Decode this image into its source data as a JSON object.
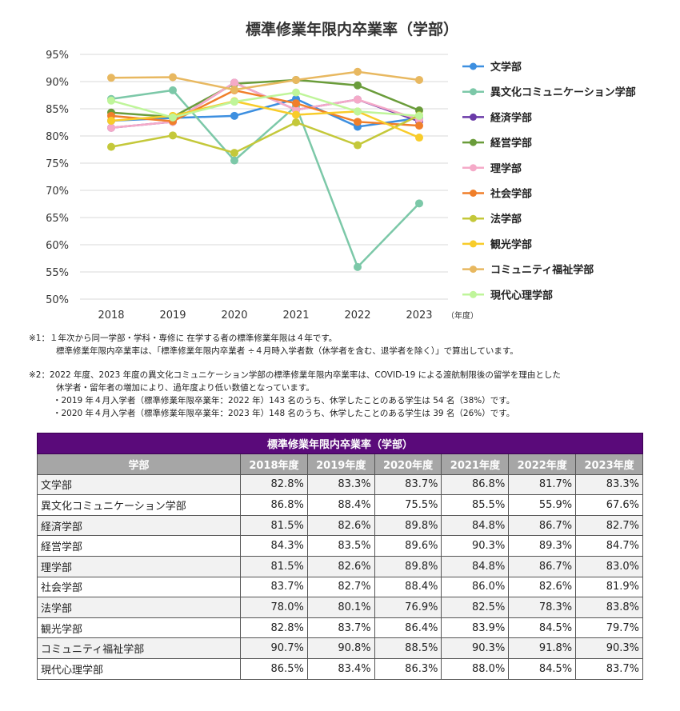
{
  "chart_data": {
    "type": "line",
    "title": "標準修業年限内卒業率（学部）",
    "x": [
      "2018",
      "2019",
      "2020",
      "2021",
      "2022",
      "2023"
    ],
    "x_unit": "（年度）",
    "ylim": [
      50,
      95
    ],
    "yticks": [
      "50%",
      "55%",
      "60%",
      "65%",
      "70%",
      "75%",
      "80%",
      "85%",
      "90%",
      "95%"
    ],
    "grid": true,
    "legend_position": "right",
    "series": [
      {
        "name": "文学部",
        "color": "#3d8fe0",
        "values": [
          82.8,
          83.3,
          83.7,
          86.8,
          81.7,
          83.3
        ]
      },
      {
        "name": "異文化コミュニケーション学部",
        "color": "#7cc8a8",
        "values": [
          86.8,
          88.4,
          75.5,
          85.5,
          55.9,
          67.6
        ]
      },
      {
        "name": "経済学部",
        "color": "#6a3aa8",
        "values": [
          81.5,
          82.6,
          89.8,
          84.8,
          86.7,
          82.7
        ]
      },
      {
        "name": "経営学部",
        "color": "#6a9c3a",
        "values": [
          84.3,
          83.5,
          89.6,
          90.3,
          89.3,
          84.7
        ]
      },
      {
        "name": "理学部",
        "color": "#f5aac8",
        "values": [
          81.5,
          82.6,
          89.8,
          84.8,
          86.7,
          83.0
        ]
      },
      {
        "name": "社会学部",
        "color": "#f07f2a",
        "values": [
          83.7,
          82.7,
          88.4,
          86.0,
          82.6,
          81.9
        ]
      },
      {
        "name": "法学部",
        "color": "#c4c83a",
        "values": [
          78.0,
          80.1,
          76.9,
          82.5,
          78.3,
          83.8
        ]
      },
      {
        "name": "観光学部",
        "color": "#f8cc2a",
        "values": [
          82.8,
          83.7,
          86.4,
          83.9,
          84.5,
          79.7
        ]
      },
      {
        "name": "コミュニティ福祉学部",
        "color": "#e8b860",
        "values": [
          90.7,
          90.8,
          88.5,
          90.3,
          91.8,
          90.3
        ]
      },
      {
        "name": "現代心理学部",
        "color": "#bff59a",
        "values": [
          86.5,
          83.4,
          86.3,
          88.0,
          84.5,
          83.7
        ]
      }
    ]
  },
  "notes": {
    "note1_line1": "※1：１年次から同一学部・学科・専修に 在学する者の標準修業年限は４年です。",
    "note1_line2": "標準修業年限内卒業率は、「標準修業年限内卒業者 ÷４月時入学者数（休学者を含む、退学者を除く）」で算出しています。",
    "note2_line1": "※2：2022 年度、2023 年度の異文化コミュニケーション学部の標準修業年限内卒業率は、COVID-19 による渡航制限後の留学を理由とした",
    "note2_line2": "休学者・留年者の増加により、過年度より低い数値となっています。",
    "note2_line3": "・2019 年４月入学者（標準修業年限卒業年：2022 年）143 名のうち、休学したことのある学生は 54 名（38%）です。",
    "note2_line4": "・2020 年４月入学者（標準修業年限卒業年：2023 年）148 名のうち、休学したことのある学生は 39 名（26%）です。"
  },
  "table": {
    "caption": "標準修業年限内卒業率（学部）",
    "headers": [
      "学部",
      "2018年度",
      "2019年度",
      "2020年度",
      "2021年度",
      "2022年度",
      "2023年度"
    ],
    "rows": [
      [
        "文学部",
        "82.8%",
        "83.3%",
        "83.7%",
        "86.8%",
        "81.7%",
        "83.3%"
      ],
      [
        "異文化コミュニケーション学部",
        "86.8%",
        "88.4%",
        "75.5%",
        "85.5%",
        "55.9%",
        "67.6%"
      ],
      [
        "経済学部",
        "81.5%",
        "82.6%",
        "89.8%",
        "84.8%",
        "86.7%",
        "82.7%"
      ],
      [
        "経営学部",
        "84.3%",
        "83.5%",
        "89.6%",
        "90.3%",
        "89.3%",
        "84.7%"
      ],
      [
        "理学部",
        "81.5%",
        "82.6%",
        "89.8%",
        "84.8%",
        "86.7%",
        "83.0%"
      ],
      [
        "社会学部",
        "83.7%",
        "82.7%",
        "88.4%",
        "86.0%",
        "82.6%",
        "81.9%"
      ],
      [
        "法学部",
        "78.0%",
        "80.1%",
        "76.9%",
        "82.5%",
        "78.3%",
        "83.8%"
      ],
      [
        "観光学部",
        "82.8%",
        "83.7%",
        "86.4%",
        "83.9%",
        "84.5%",
        "79.7%"
      ],
      [
        "コミュニティ福祉学部",
        "90.7%",
        "90.8%",
        "88.5%",
        "90.3%",
        "91.8%",
        "90.3%"
      ],
      [
        "現代心理学部",
        "86.5%",
        "83.4%",
        "86.3%",
        "88.0%",
        "84.5%",
        "83.7%"
      ]
    ]
  }
}
